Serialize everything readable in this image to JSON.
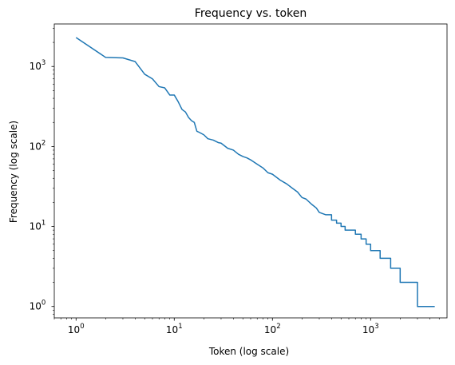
{
  "chart_data": {
    "type": "line",
    "title": "Frequency vs. token",
    "xlabel": "Token (log scale)",
    "ylabel": "Frequency (log scale)",
    "xscale": "log",
    "yscale": "log",
    "xlim": [
      0.6,
      6000
    ],
    "ylim": [
      0.72,
      3400
    ],
    "grid": false,
    "x_ticks": [
      {
        "value": 1,
        "base": "10",
        "exp": "0"
      },
      {
        "value": 10,
        "base": "10",
        "exp": "1"
      },
      {
        "value": 100,
        "base": "10",
        "exp": "2"
      },
      {
        "value": 1000,
        "base": "10",
        "exp": "3"
      }
    ],
    "y_ticks": [
      {
        "value": 1,
        "base": "10",
        "exp": "0"
      },
      {
        "value": 10,
        "base": "10",
        "exp": "1"
      },
      {
        "value": 100,
        "base": "10",
        "exp": "2"
      },
      {
        "value": 1000,
        "base": "10",
        "exp": "3"
      }
    ],
    "series": [
      {
        "color": "#1f77b4",
        "x": [
          1,
          2,
          3,
          4,
          5,
          6,
          7,
          8,
          9,
          10,
          11,
          12,
          13,
          14,
          15,
          16,
          17,
          18,
          20,
          22,
          25,
          28,
          30,
          35,
          40,
          45,
          50,
          55,
          60,
          70,
          80,
          90,
          100,
          120,
          140,
          160,
          180,
          200,
          220,
          250,
          280,
          300,
          350,
          400,
          450,
          500,
          550,
          600,
          700,
          800,
          900,
          1000,
          1100,
          1250,
          1400,
          1600,
          1800,
          2000,
          2200,
          3000,
          4500
        ],
        "y": [
          2300,
          1300,
          1280,
          1150,
          800,
          700,
          560,
          540,
          440,
          440,
          360,
          290,
          270,
          230,
          210,
          200,
          155,
          150,
          140,
          125,
          120,
          112,
          110,
          95,
          90,
          80,
          75,
          72,
          68,
          60,
          54,
          47,
          45,
          38,
          34,
          30,
          27,
          23,
          22,
          19,
          17,
          15,
          14,
          12,
          11,
          10,
          9,
          9,
          8,
          7,
          6,
          5,
          5,
          4,
          4,
          3,
          3,
          2,
          2,
          1,
          1
        ]
      }
    ]
  }
}
